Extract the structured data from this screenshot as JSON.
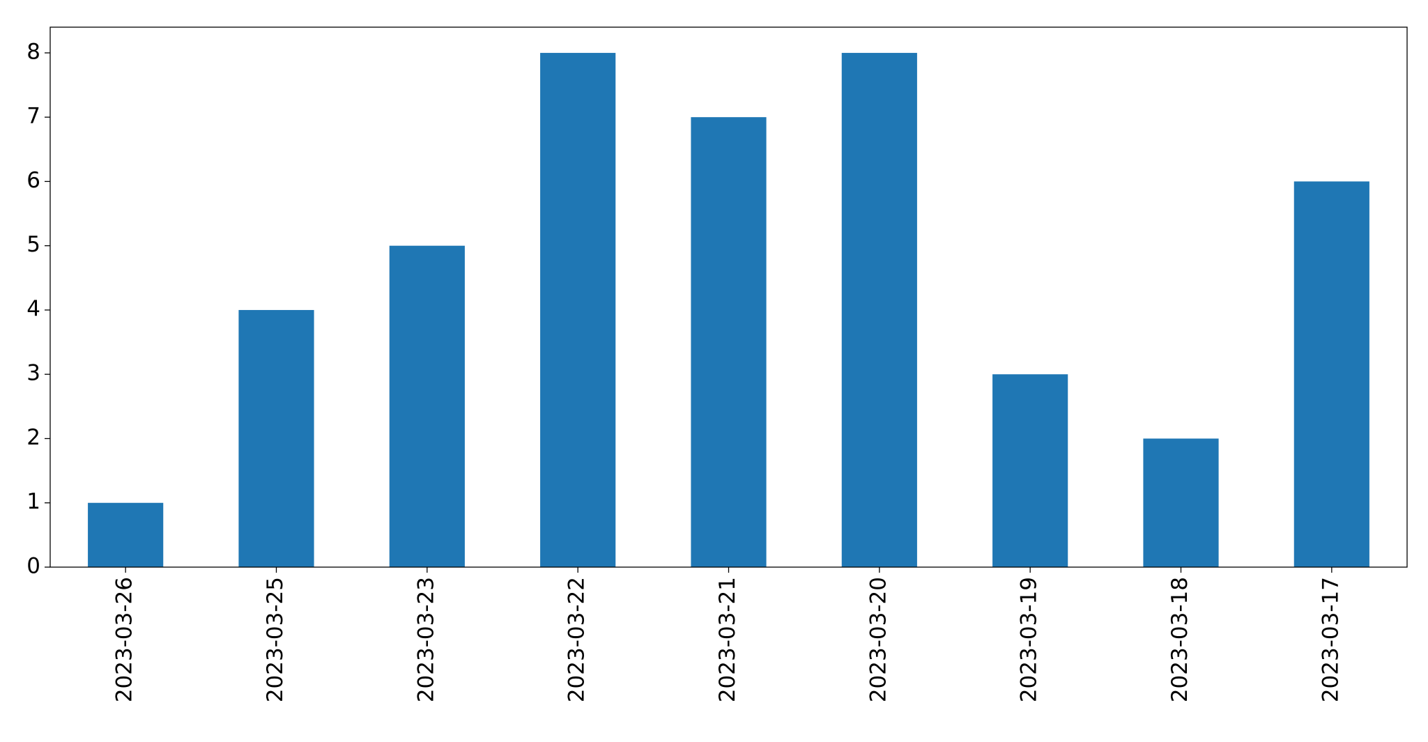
{
  "chart_data": {
    "type": "bar",
    "categories": [
      "2023-03-26",
      "2023-03-25",
      "2023-03-23",
      "2023-03-22",
      "2023-03-21",
      "2023-03-20",
      "2023-03-19",
      "2023-03-18",
      "2023-03-17"
    ],
    "values": [
      1,
      4,
      5,
      8,
      7,
      8,
      3,
      2,
      6
    ],
    "color": "#1f77b4",
    "ylim": [
      0,
      8.4
    ],
    "yticks": [
      0,
      1,
      2,
      3,
      4,
      5,
      6,
      7,
      8
    ],
    "grid": false
  }
}
